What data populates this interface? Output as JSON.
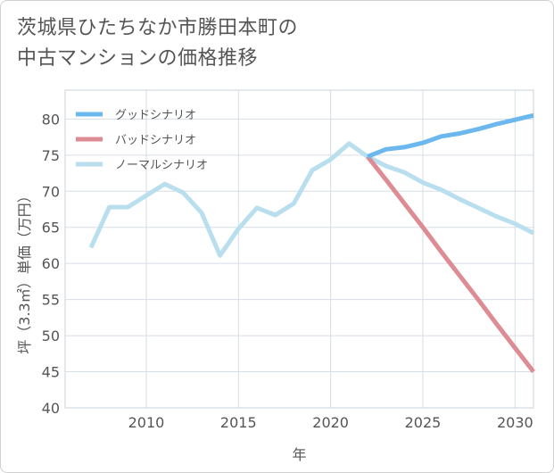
{
  "page": {
    "title_line1": "茨城県ひたちなか市勝田本町の",
    "title_line2": "中古マンションの価格推移"
  },
  "chart_data": {
    "type": "line",
    "title": "茨城県ひたちなか市勝田本町の中古マンションの価格推移",
    "xlabel": "年",
    "ylabel": "坪（3.3㎡）単価（万円）",
    "xlim": [
      2005.6,
      2031
    ],
    "ylim": [
      40,
      84
    ],
    "x_ticks": [
      2010,
      2015,
      2020,
      2025,
      2030
    ],
    "y_ticks": [
      40,
      45,
      50,
      55,
      60,
      65,
      70,
      75,
      80
    ],
    "legend_position": "top-left",
    "series": [
      {
        "name": "グッドシナリオ",
        "color": "#6cb8ee",
        "points": [
          [
            2022,
            74.8
          ],
          [
            2023,
            75.8
          ],
          [
            2024,
            76.1
          ],
          [
            2025,
            76.7
          ],
          [
            2026,
            77.6
          ],
          [
            2027,
            78.0
          ],
          [
            2028,
            78.6
          ],
          [
            2029,
            79.3
          ],
          [
            2030,
            79.9
          ],
          [
            2031,
            80.5
          ]
        ]
      },
      {
        "name": "バッドシナリオ",
        "color": "#dd8c94",
        "points": [
          [
            2022,
            74.8
          ],
          [
            2023,
            71.6
          ],
          [
            2024,
            68.3
          ],
          [
            2025,
            65.0
          ],
          [
            2026,
            61.6
          ],
          [
            2027,
            58.3
          ],
          [
            2028,
            55.0
          ],
          [
            2029,
            51.6
          ],
          [
            2030,
            48.3
          ],
          [
            2031,
            45.0
          ]
        ]
      },
      {
        "name": "ノーマルシナリオ",
        "color": "#b9dfee",
        "points": [
          [
            2007,
            62.2
          ],
          [
            2008,
            67.8
          ],
          [
            2009,
            67.8
          ],
          [
            2010,
            69.4
          ],
          [
            2011,
            71.0
          ],
          [
            2012,
            69.8
          ],
          [
            2013,
            67.0
          ],
          [
            2014,
            61.1
          ],
          [
            2015,
            64.8
          ],
          [
            2016,
            67.7
          ],
          [
            2017,
            66.7
          ],
          [
            2018,
            68.3
          ],
          [
            2019,
            72.9
          ],
          [
            2020,
            74.4
          ],
          [
            2021,
            76.6
          ],
          [
            2022,
            74.8
          ],
          [
            2023,
            73.5
          ],
          [
            2024,
            72.6
          ],
          [
            2025,
            71.2
          ],
          [
            2026,
            70.2
          ],
          [
            2027,
            68.9
          ],
          [
            2028,
            67.7
          ],
          [
            2029,
            66.5
          ],
          [
            2030,
            65.5
          ],
          [
            2031,
            64.2
          ]
        ]
      }
    ]
  }
}
